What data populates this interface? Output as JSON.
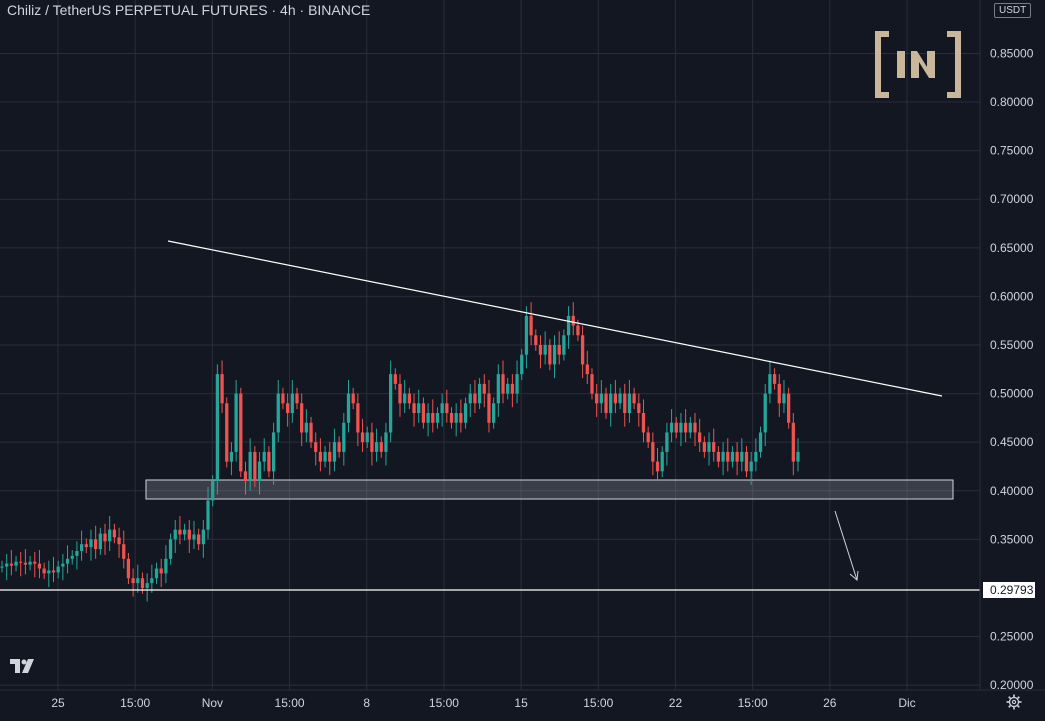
{
  "header": {
    "title": "Chiliz / TetherUS PERPETUAL FUTURES · 4h · BINANCE",
    "unit_badge": "USDT"
  },
  "icons": {
    "watermark": "beincrypto-logo-icon",
    "platform": "tradingview-logo-icon",
    "settings": "gear-icon"
  },
  "colors": {
    "background": "#131722",
    "grid": "#2a2e39",
    "up": "#26a69a",
    "down": "#ef5350",
    "wick": "#8a8f9c",
    "trendline": "#ffffff",
    "support_zone": "#9598a1"
  },
  "chart_data": {
    "type": "candlestick",
    "title": "Chiliz / TetherUS PERPETUAL FUTURES · 4h · BINANCE",
    "ylabel": "USDT",
    "ylim": [
      0.195,
      0.905
    ],
    "y_ticks": [
      0.2,
      0.25,
      0.35,
      0.4,
      0.45,
      0.5,
      0.55,
      0.6,
      0.65,
      0.7,
      0.75,
      0.8,
      0.85
    ],
    "x_ticks": [
      "25",
      "15:00",
      "Nov",
      "15:00",
      "8",
      "15:00",
      "15",
      "15:00",
      "22",
      "15:00",
      "26",
      "Dic"
    ],
    "grid": true,
    "price_label": "0.29793",
    "horizontal_level": 0.29793,
    "trendline": {
      "start": 0.665,
      "end": 0.503
    },
    "support_zone": [
      0.395,
      0.414
    ],
    "projection": {
      "from": 0.39,
      "to": 0.3
    },
    "series": [
      {
        "points": [
          0.322,
          0.325,
          0.323,
          0.327,
          0.326,
          0.324,
          0.327,
          0.325,
          0.32,
          0.315,
          0.318,
          0.316,
          0.322,
          0.325,
          0.33,
          0.333,
          0.338,
          0.345,
          0.342,
          0.35,
          0.34,
          0.356,
          0.348,
          0.36,
          0.352,
          0.345,
          0.33,
          0.31,
          0.305,
          0.31,
          0.3,
          0.305,
          0.31,
          0.32,
          0.315,
          0.33,
          0.35,
          0.36,
          0.355,
          0.36,
          0.35,
          0.355,
          0.345,
          0.36,
          0.39,
          0.41,
          0.52,
          0.49,
          0.43,
          0.44,
          0.5,
          0.42,
          0.41,
          0.44,
          0.41,
          0.43,
          0.44,
          0.42,
          0.46,
          0.5,
          0.49,
          0.48,
          0.5,
          0.49,
          0.46,
          0.47,
          0.45,
          0.44,
          0.43,
          0.44,
          0.43,
          0.45,
          0.44,
          0.47,
          0.5,
          0.49,
          0.46,
          0.45,
          0.46,
          0.44,
          0.45,
          0.44,
          0.46,
          0.52,
          0.51,
          0.49,
          0.5,
          0.49,
          0.48,
          0.49,
          0.47,
          0.48,
          0.47,
          0.48,
          0.49,
          0.48,
          0.47,
          0.48,
          0.47,
          0.49,
          0.5,
          0.49,
          0.51,
          0.5,
          0.47,
          0.49,
          0.52,
          0.5,
          0.51,
          0.5,
          0.52,
          0.54,
          0.58,
          0.56,
          0.55,
          0.54,
          0.55,
          0.53,
          0.55,
          0.54,
          0.56,
          0.58,
          0.57,
          0.56,
          0.53,
          0.52,
          0.5,
          0.49,
          0.5,
          0.48,
          0.5,
          0.49,
          0.5,
          0.48,
          0.5,
          0.49,
          0.48,
          0.46,
          0.45,
          0.43,
          0.42,
          0.44,
          0.46,
          0.47,
          0.46,
          0.47,
          0.46,
          0.47,
          0.46,
          0.45,
          0.44,
          0.45,
          0.44,
          0.43,
          0.44,
          0.43,
          0.44,
          0.43,
          0.44,
          0.42,
          0.43,
          0.44,
          0.46,
          0.5,
          0.52,
          0.51,
          0.49,
          0.5,
          0.47,
          0.43,
          0.44
        ]
      }
    ]
  }
}
